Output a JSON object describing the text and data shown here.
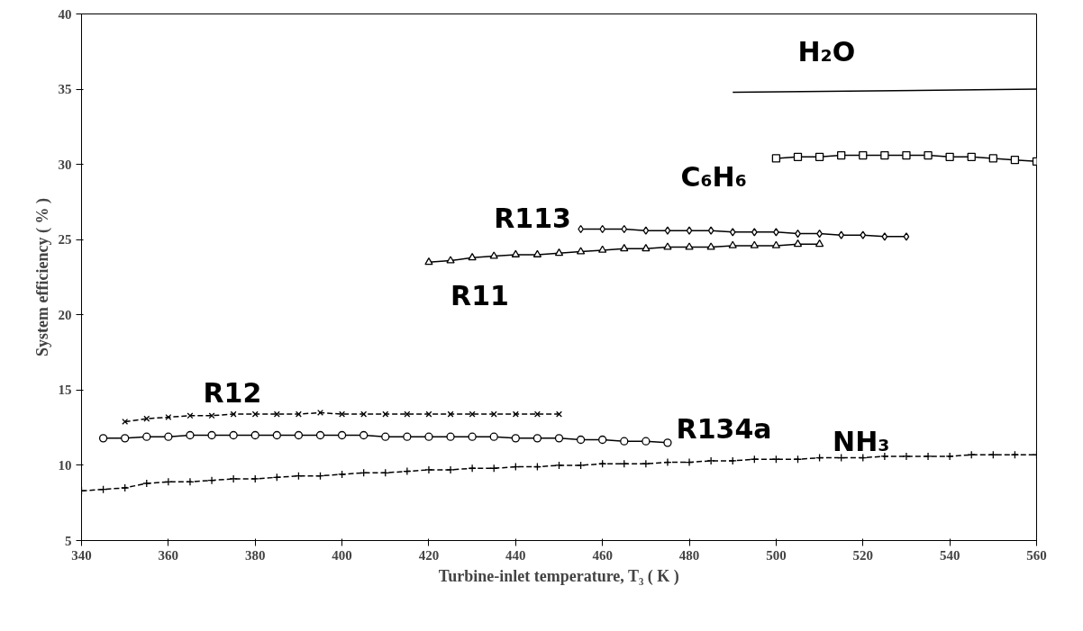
{
  "chart_data": {
    "type": "line",
    "xlabel": "Turbine-inlet temperature, T₃ ( K )",
    "ylabel": "System efficiency ( % )",
    "xlim": [
      340,
      560
    ],
    "ylim": [
      5,
      40
    ],
    "xticks": [
      340,
      360,
      380,
      400,
      420,
      440,
      460,
      480,
      500,
      520,
      540,
      560
    ],
    "yticks": [
      5,
      10,
      15,
      20,
      25,
      30,
      35,
      40
    ],
    "grid": false,
    "series": [
      {
        "name": "H₂O",
        "color": "#000000",
        "marker": "none",
        "line_style": "solid",
        "x": [
          490,
          560
        ],
        "values": [
          34.8,
          35.0
        ]
      },
      {
        "name": "C₆H₆",
        "color": "#000000",
        "marker": "square",
        "line_style": "solid",
        "x": [
          500,
          505,
          510,
          515,
          520,
          525,
          530,
          535,
          540,
          545,
          550,
          555,
          560
        ],
        "values": [
          30.4,
          30.5,
          30.5,
          30.6,
          30.6,
          30.6,
          30.6,
          30.6,
          30.5,
          30.5,
          30.4,
          30.3,
          30.2
        ]
      },
      {
        "name": "R113",
        "color": "#000000",
        "marker": "diamond",
        "line_style": "solid",
        "x": [
          455,
          460,
          465,
          470,
          475,
          480,
          485,
          490,
          495,
          500,
          505,
          510,
          515,
          520,
          525,
          530
        ],
        "values": [
          25.7,
          25.7,
          25.7,
          25.6,
          25.6,
          25.6,
          25.6,
          25.5,
          25.5,
          25.5,
          25.4,
          25.4,
          25.3,
          25.3,
          25.2,
          25.2
        ]
      },
      {
        "name": "R11",
        "color": "#000000",
        "marker": "triangle",
        "line_style": "solid",
        "x": [
          420,
          425,
          430,
          435,
          440,
          445,
          450,
          455,
          460,
          465,
          470,
          475,
          480,
          485,
          490,
          495,
          500,
          505,
          510
        ],
        "values": [
          23.5,
          23.6,
          23.8,
          23.9,
          24.0,
          24.0,
          24.1,
          24.2,
          24.3,
          24.4,
          24.4,
          24.5,
          24.5,
          24.5,
          24.6,
          24.6,
          24.6,
          24.7,
          24.7
        ]
      },
      {
        "name": "R12",
        "color": "#000000",
        "marker": "cross",
        "line_style": "dashed",
        "x": [
          350,
          355,
          360,
          365,
          370,
          375,
          380,
          385,
          390,
          395,
          400,
          405,
          410,
          415,
          420,
          425,
          430,
          435,
          440,
          445,
          450
        ],
        "values": [
          12.9,
          13.1,
          13.2,
          13.3,
          13.3,
          13.4,
          13.4,
          13.4,
          13.4,
          13.5,
          13.4,
          13.4,
          13.4,
          13.4,
          13.4,
          13.4,
          13.4,
          13.4,
          13.4,
          13.4,
          13.4
        ]
      },
      {
        "name": "R134a",
        "color": "#000000",
        "marker": "circle",
        "line_style": "solid",
        "x": [
          345,
          350,
          355,
          360,
          365,
          370,
          375,
          380,
          385,
          390,
          395,
          400,
          405,
          410,
          415,
          420,
          425,
          430,
          435,
          440,
          445,
          450,
          455,
          460,
          465,
          470,
          475
        ],
        "values": [
          11.8,
          11.8,
          11.9,
          11.9,
          12.0,
          12.0,
          12.0,
          12.0,
          12.0,
          12.0,
          12.0,
          12.0,
          12.0,
          11.9,
          11.9,
          11.9,
          11.9,
          11.9,
          11.9,
          11.8,
          11.8,
          11.8,
          11.7,
          11.7,
          11.6,
          11.6,
          11.5
        ]
      },
      {
        "name": "NH₃",
        "color": "#000000",
        "marker": "plus",
        "line_style": "dashed",
        "x": [
          340,
          345,
          350,
          355,
          360,
          365,
          370,
          375,
          380,
          385,
          390,
          395,
          400,
          405,
          410,
          415,
          420,
          425,
          430,
          435,
          440,
          445,
          450,
          455,
          460,
          465,
          470,
          475,
          480,
          485,
          490,
          495,
          500,
          505,
          510,
          515,
          520,
          525,
          530,
          535,
          540,
          545,
          550,
          555,
          560
        ],
        "values": [
          8.3,
          8.4,
          8.5,
          8.8,
          8.9,
          8.9,
          9.0,
          9.1,
          9.1,
          9.2,
          9.3,
          9.3,
          9.4,
          9.5,
          9.5,
          9.6,
          9.7,
          9.7,
          9.8,
          9.8,
          9.9,
          9.9,
          10.0,
          10.0,
          10.1,
          10.1,
          10.1,
          10.2,
          10.2,
          10.3,
          10.3,
          10.4,
          10.4,
          10.4,
          10.5,
          10.5,
          10.5,
          10.6,
          10.6,
          10.6,
          10.6,
          10.7,
          10.7,
          10.7,
          10.7
        ]
      }
    ]
  }
}
